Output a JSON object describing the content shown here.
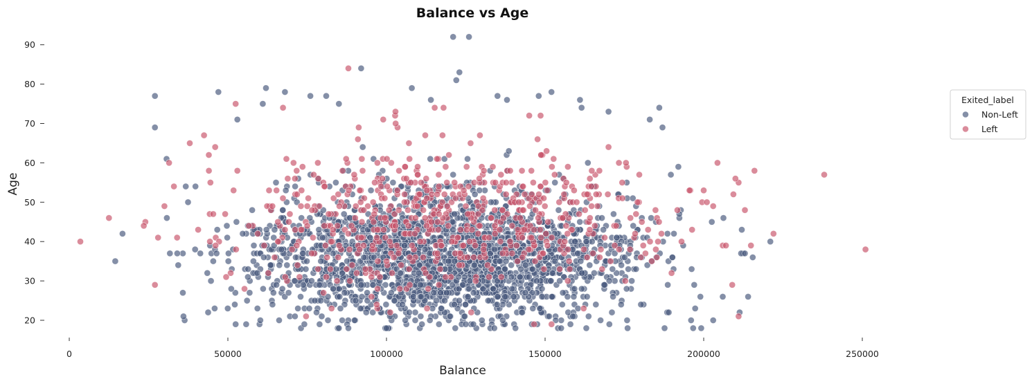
{
  "chart_data": {
    "type": "scatter",
    "title": "Balance vs Age",
    "xlabel": "Balance",
    "ylabel": "Age",
    "xlim": [
      -5000,
      300000
    ],
    "ylim": [
      15,
      95
    ],
    "xticks": [
      0,
      50000,
      100000,
      150000,
      200000,
      250000
    ],
    "xtick_labels": [
      "0",
      "50000",
      "100000",
      "150000",
      "200000",
      "250000"
    ],
    "yticks": [
      20,
      30,
      40,
      50,
      60,
      70,
      80,
      90
    ],
    "ytick_labels": [
      "20",
      "30",
      "40",
      "50",
      "60",
      "70",
      "80",
      "90"
    ],
    "grid": false,
    "legend": {
      "title": "Exited_label",
      "placement": "right",
      "entries": [
        "Non-Left",
        "Left"
      ]
    },
    "series": [
      {
        "name": "Non-Left",
        "color": "#4a5a7e",
        "distribution": {
          "count": 2300,
          "x_mean": 118000,
          "x_sd": 30000,
          "y_mean": 36,
          "y_sd": 8
        },
        "points": [
          [
            14500,
            35
          ],
          [
            16800,
            42
          ],
          [
            27000,
            77
          ],
          [
            27000,
            69
          ],
          [
            36000,
            21
          ],
          [
            47000,
            78
          ],
          [
            53000,
            71
          ],
          [
            62000,
            79
          ],
          [
            61000,
            75
          ],
          [
            68000,
            78
          ],
          [
            76000,
            77
          ],
          [
            81000,
            77
          ],
          [
            85000,
            75
          ],
          [
            92000,
            84
          ],
          [
            108000,
            79
          ],
          [
            114000,
            76
          ],
          [
            121000,
            92
          ],
          [
            126000,
            92
          ],
          [
            122000,
            81
          ],
          [
            123000,
            83
          ],
          [
            135000,
            77
          ],
          [
            138000,
            76
          ],
          [
            148000,
            77
          ],
          [
            152000,
            78
          ],
          [
            161000,
            76
          ],
          [
            161500,
            74
          ],
          [
            170000,
            73
          ],
          [
            183000,
            71
          ],
          [
            186000,
            74
          ],
          [
            187000,
            69
          ],
          [
            192000,
            59
          ],
          [
            212000,
            43
          ],
          [
            213000,
            37
          ],
          [
            214000,
            26
          ],
          [
            221000,
            40
          ],
          [
            203000,
            20
          ],
          [
            206000,
            26
          ],
          [
            176000,
            18
          ],
          [
            163000,
            18
          ],
          [
            158000,
            19
          ],
          [
            125000,
            19
          ],
          [
            100000,
            18
          ],
          [
            88000,
            18
          ],
          [
            85000,
            18
          ],
          [
            134000,
            18
          ]
        ]
      },
      {
        "name": "Left",
        "color": "#c8566b",
        "distribution": {
          "count": 650,
          "x_mean": 120000,
          "x_sd": 35000,
          "y_mean": 46,
          "y_sd": 9
        },
        "points": [
          [
            3500,
            40
          ],
          [
            12500,
            46
          ],
          [
            24000,
            45
          ],
          [
            23500,
            44
          ],
          [
            27000,
            29
          ],
          [
            28000,
            41
          ],
          [
            30000,
            49
          ],
          [
            34000,
            41
          ],
          [
            38000,
            65
          ],
          [
            44000,
            62
          ],
          [
            46000,
            64
          ],
          [
            44500,
            55
          ],
          [
            53000,
            58
          ],
          [
            88000,
            84
          ],
          [
            91000,
            66
          ],
          [
            118000,
            74
          ],
          [
            145000,
            72
          ],
          [
            170000,
            64
          ],
          [
            200000,
            53
          ],
          [
            210000,
            56
          ],
          [
            216000,
            58
          ],
          [
            222000,
            42
          ],
          [
            238000,
            57
          ],
          [
            251000,
            38
          ],
          [
            211000,
            21
          ],
          [
            213000,
            48
          ],
          [
            206000,
            39
          ],
          [
            209000,
            29
          ],
          [
            201000,
            50
          ],
          [
            203000,
            49
          ],
          [
            207000,
            39
          ]
        ]
      }
    ]
  }
}
